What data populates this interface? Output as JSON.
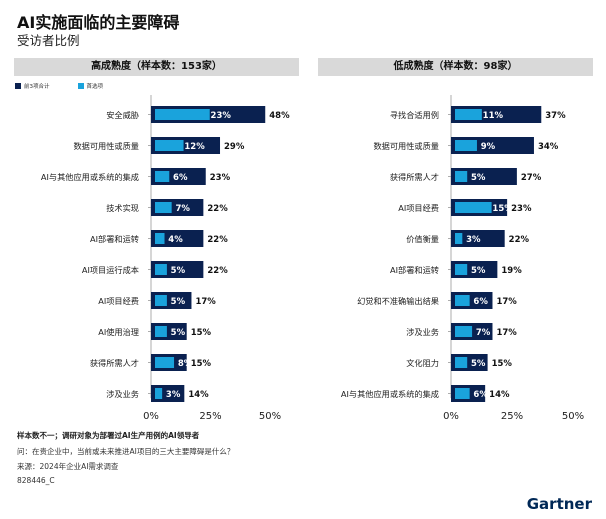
{
  "title": "AI实施面临的主要障碍",
  "subtitle": "受访者比例",
  "legend": {
    "top3": "前3项合计",
    "first": "首选项"
  },
  "colors": {
    "top3": "#0a2150",
    "first": "#1aa3dc",
    "header_bg": "#d9d9d9",
    "label_text": "#ffffff"
  },
  "notes": {
    "sample": "样本数不一；调研对象为部署过AI生产用例的AI领导者",
    "question": "问：在贵企业中，当前或未来推进AI项目的三大主要障碍是什么？",
    "source": "来源：2024年企业AI需求调查",
    "id": "828446_C"
  },
  "logo": "Gartner",
  "chart_data": [
    {
      "type": "bar",
      "title": "高成熟度（样本数：153家）",
      "categories": [
        "安全威胁",
        "数据可用性或质量",
        "AI与其他应用或系统的集成",
        "技术实现",
        "AI部署和运转",
        "AI项目运行成本",
        "AI项目经费",
        "AI使用治理",
        "获得所需人才",
        "涉及业务"
      ],
      "series": [
        {
          "name": "前3项合计",
          "values": [
            48,
            29,
            23,
            22,
            22,
            22,
            17,
            15,
            15,
            14
          ]
        },
        {
          "name": "首选项",
          "values": [
            23,
            12,
            6,
            7,
            4,
            5,
            5,
            5,
            8,
            3
          ]
        }
      ],
      "xlim": [
        0,
        50
      ],
      "xticks": [
        "0%",
        "25%",
        "50%"
      ]
    },
    {
      "type": "bar",
      "title": "低成熟度（样本数：98家）",
      "categories": [
        "寻找合适用例",
        "数据可用性或质量",
        "获得所需人才",
        "AI项目经费",
        "价值衡量",
        "AI部署和运转",
        "幻觉和不准确输出结果",
        "涉及业务",
        "文化阻力",
        "AI与其他应用或系统的集成"
      ],
      "series": [
        {
          "name": "前3项合计",
          "values": [
            37,
            34,
            27,
            23,
            22,
            19,
            17,
            17,
            15,
            14
          ]
        },
        {
          "name": "首选项",
          "values": [
            11,
            9,
            5,
            15,
            3,
            5,
            6,
            7,
            5,
            6
          ]
        }
      ],
      "xlim": [
        0,
        50
      ],
      "xticks": [
        "0%",
        "25%",
        "50%"
      ]
    }
  ]
}
